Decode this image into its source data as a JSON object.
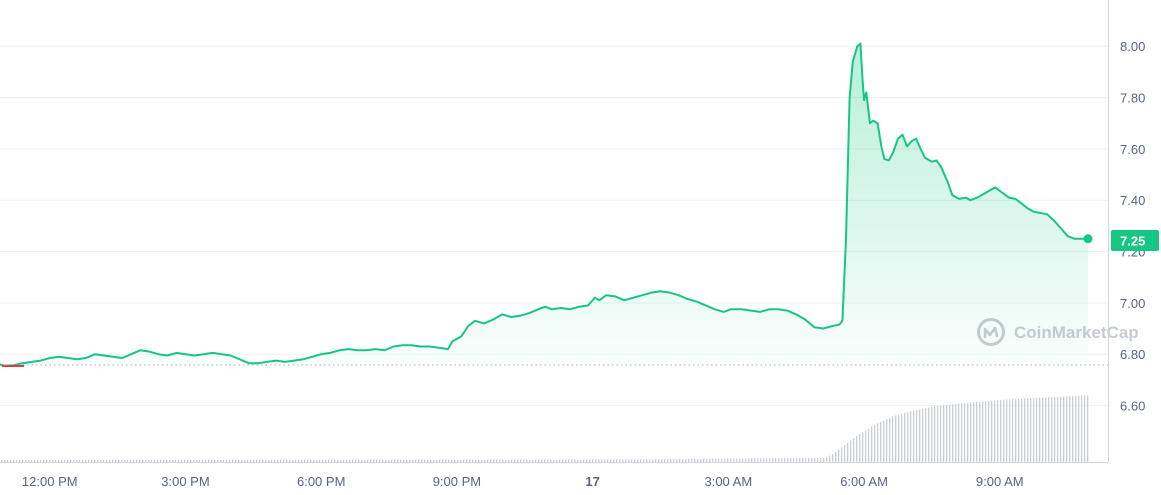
{
  "watermark": {
    "text": "CoinMarketCap",
    "icon": "coinmarketcap-logo-icon"
  },
  "colors": {
    "line_up": "#16c784",
    "line_down": "#ea3943",
    "area_top": "#16c784",
    "volume": "#c9ced6",
    "axis_text": "#58667e",
    "baseline": "#a6b0c3"
  },
  "chart_data": {
    "type": "area",
    "title": "",
    "xlabel": "",
    "ylabel": "",
    "ylim": [
      6.38,
      8.18
    ],
    "y_ticks": [
      6.6,
      6.8,
      7.0,
      7.2,
      7.4,
      7.6,
      7.8,
      8.0
    ],
    "y_tick_labels": [
      "6.60",
      "6.80",
      "7.00",
      "7.20",
      "7.40",
      "7.60",
      "7.80",
      "8.00"
    ],
    "x_range_hours": [
      10.9,
      34.95
    ],
    "x_ticks": [
      {
        "label": "12:00 PM",
        "h": 12
      },
      {
        "label": "3:00 PM",
        "h": 15
      },
      {
        "label": "6:00 PM",
        "h": 18
      },
      {
        "label": "9:00 PM",
        "h": 21
      },
      {
        "label": "17",
        "h": 24,
        "bold": true
      },
      {
        "label": "3:00 AM",
        "h": 27
      },
      {
        "label": "6:00 AM",
        "h": 30
      },
      {
        "label": "9:00 AM",
        "h": 33
      }
    ],
    "open_price": 6.758,
    "current_price": 7.25,
    "current_label": "7.25",
    "grid": true,
    "series": [
      {
        "values": [
          [
            10.9,
            6.76
          ],
          [
            11.0,
            6.755
          ],
          [
            11.2,
            6.757
          ],
          [
            11.4,
            6.765
          ],
          [
            11.6,
            6.77
          ],
          [
            11.8,
            6.775
          ],
          [
            12.0,
            6.785
          ],
          [
            12.2,
            6.79
          ],
          [
            12.4,
            6.785
          ],
          [
            12.6,
            6.78
          ],
          [
            12.8,
            6.785
          ],
          [
            13.0,
            6.8
          ],
          [
            13.2,
            6.795
          ],
          [
            13.4,
            6.79
          ],
          [
            13.6,
            6.785
          ],
          [
            13.8,
            6.8
          ],
          [
            14.0,
            6.815
          ],
          [
            14.2,
            6.81
          ],
          [
            14.4,
            6.8
          ],
          [
            14.6,
            6.795
          ],
          [
            14.8,
            6.805
          ],
          [
            15.0,
            6.8
          ],
          [
            15.2,
            6.795
          ],
          [
            15.4,
            6.8
          ],
          [
            15.6,
            6.805
          ],
          [
            15.8,
            6.8
          ],
          [
            16.0,
            6.795
          ],
          [
            16.2,
            6.78
          ],
          [
            16.4,
            6.765
          ],
          [
            16.6,
            6.765
          ],
          [
            16.8,
            6.77
          ],
          [
            17.0,
            6.775
          ],
          [
            17.2,
            6.77
          ],
          [
            17.4,
            6.775
          ],
          [
            17.6,
            6.78
          ],
          [
            17.8,
            6.79
          ],
          [
            18.0,
            6.8
          ],
          [
            18.2,
            6.805
          ],
          [
            18.4,
            6.815
          ],
          [
            18.6,
            6.82
          ],
          [
            18.8,
            6.815
          ],
          [
            19.0,
            6.815
          ],
          [
            19.2,
            6.82
          ],
          [
            19.4,
            6.815
          ],
          [
            19.6,
            6.83
          ],
          [
            19.8,
            6.835
          ],
          [
            20.0,
            6.835
          ],
          [
            20.2,
            6.83
          ],
          [
            20.4,
            6.83
          ],
          [
            20.6,
            6.825
          ],
          [
            20.8,
            6.82
          ],
          [
            20.9,
            6.85
          ],
          [
            21.1,
            6.87
          ],
          [
            21.25,
            6.91
          ],
          [
            21.4,
            6.93
          ],
          [
            21.6,
            6.92
          ],
          [
            21.8,
            6.935
          ],
          [
            22.0,
            6.955
          ],
          [
            22.2,
            6.945
          ],
          [
            22.4,
            6.95
          ],
          [
            22.6,
            6.96
          ],
          [
            22.8,
            6.975
          ],
          [
            22.95,
            6.985
          ],
          [
            23.1,
            6.975
          ],
          [
            23.3,
            6.98
          ],
          [
            23.5,
            6.975
          ],
          [
            23.7,
            6.985
          ],
          [
            23.9,
            6.99
          ],
          [
            24.05,
            7.02
          ],
          [
            24.15,
            7.01
          ],
          [
            24.3,
            7.03
          ],
          [
            24.5,
            7.025
          ],
          [
            24.7,
            7.01
          ],
          [
            24.9,
            7.02
          ],
          [
            25.1,
            7.03
          ],
          [
            25.3,
            7.04
          ],
          [
            25.5,
            7.045
          ],
          [
            25.7,
            7.04
          ],
          [
            25.9,
            7.03
          ],
          [
            26.1,
            7.015
          ],
          [
            26.3,
            7.005
          ],
          [
            26.5,
            6.99
          ],
          [
            26.7,
            6.975
          ],
          [
            26.9,
            6.965
          ],
          [
            27.05,
            6.975
          ],
          [
            27.3,
            6.975
          ],
          [
            27.5,
            6.97
          ],
          [
            27.7,
            6.965
          ],
          [
            27.9,
            6.975
          ],
          [
            28.1,
            6.975
          ],
          [
            28.3,
            6.97
          ],
          [
            28.5,
            6.955
          ],
          [
            28.7,
            6.935
          ],
          [
            28.9,
            6.905
          ],
          [
            29.1,
            6.9
          ],
          [
            29.3,
            6.91
          ],
          [
            29.45,
            6.915
          ],
          [
            29.52,
            6.93
          ],
          [
            29.6,
            7.25
          ],
          [
            29.68,
            7.8
          ],
          [
            29.75,
            7.94
          ],
          [
            29.85,
            8.0
          ],
          [
            29.92,
            8.01
          ],
          [
            29.97,
            7.86
          ],
          [
            30.0,
            7.79
          ],
          [
            30.05,
            7.82
          ],
          [
            30.13,
            7.7
          ],
          [
            30.2,
            7.71
          ],
          [
            30.3,
            7.7
          ],
          [
            30.38,
            7.61
          ],
          [
            30.45,
            7.56
          ],
          [
            30.55,
            7.555
          ],
          [
            30.65,
            7.59
          ],
          [
            30.75,
            7.64
          ],
          [
            30.85,
            7.655
          ],
          [
            30.95,
            7.61
          ],
          [
            31.05,
            7.63
          ],
          [
            31.15,
            7.64
          ],
          [
            31.25,
            7.6
          ],
          [
            31.35,
            7.565
          ],
          [
            31.5,
            7.55
          ],
          [
            31.6,
            7.555
          ],
          [
            31.7,
            7.53
          ],
          [
            31.85,
            7.47
          ],
          [
            31.95,
            7.42
          ],
          [
            32.1,
            7.405
          ],
          [
            32.25,
            7.41
          ],
          [
            32.35,
            7.4
          ],
          [
            32.5,
            7.41
          ],
          [
            32.65,
            7.425
          ],
          [
            32.8,
            7.44
          ],
          [
            32.9,
            7.45
          ],
          [
            33.05,
            7.43
          ],
          [
            33.2,
            7.41
          ],
          [
            33.35,
            7.405
          ],
          [
            33.5,
            7.385
          ],
          [
            33.6,
            7.37
          ],
          [
            33.75,
            7.355
          ],
          [
            33.9,
            7.35
          ],
          [
            34.05,
            7.345
          ],
          [
            34.2,
            7.32
          ],
          [
            34.35,
            7.29
          ],
          [
            34.5,
            7.26
          ],
          [
            34.65,
            7.25
          ],
          [
            34.8,
            7.25
          ],
          [
            34.95,
            7.25
          ]
        ]
      }
    ],
    "volume": {
      "max_y_value": 6.64,
      "values": [
        [
          10.9,
          0.03
        ],
        [
          25.0,
          0.04
        ],
        [
          29.1,
          0.06
        ],
        [
          29.3,
          0.12
        ],
        [
          29.55,
          0.25
        ],
        [
          29.8,
          0.38
        ],
        [
          30.2,
          0.55
        ],
        [
          30.6,
          0.68
        ],
        [
          31.0,
          0.76
        ],
        [
          31.6,
          0.84
        ],
        [
          32.3,
          0.89
        ],
        [
          33.0,
          0.93
        ],
        [
          33.8,
          0.96
        ],
        [
          34.95,
          1.0
        ]
      ]
    }
  }
}
